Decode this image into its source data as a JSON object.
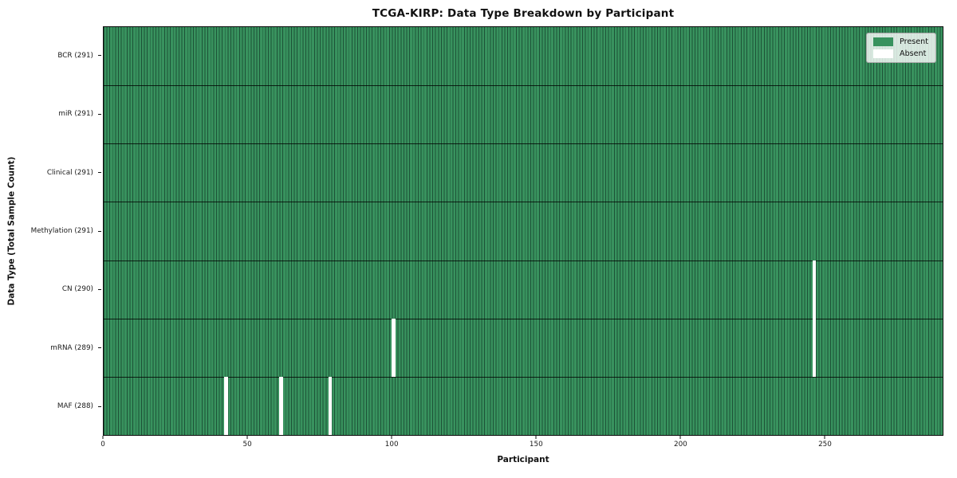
{
  "title": "TCGA-KIRP: Data Type Breakdown by Participant",
  "colors": {
    "present": "#38925e",
    "cell_edge": "#1d5237",
    "absent": "#ffffff",
    "axis_text": "#111111"
  },
  "chart_data": {
    "type": "heatmap",
    "title": "TCGA-KIRP: Data Type Breakdown by Participant",
    "xlabel": "Participant",
    "ylabel": "Data Type (Total Sample Count)",
    "x_ticks": [
      0,
      50,
      100,
      150,
      200,
      250
    ],
    "x_range": [
      0,
      291
    ],
    "n_participants": 291,
    "grid": false,
    "legend_position": "upper right",
    "legend": [
      {
        "label": "Present",
        "color": "#38925e"
      },
      {
        "label": "Absent",
        "color": "#ffffff"
      }
    ],
    "rows": [
      {
        "label": "BCR (291)",
        "data_type": "BCR",
        "total": 291,
        "absent_participants": []
      },
      {
        "label": "miR (291)",
        "data_type": "miR",
        "total": 291,
        "absent_participants": []
      },
      {
        "label": "Clinical (291)",
        "data_type": "Clinical",
        "total": 291,
        "absent_participants": []
      },
      {
        "label": "Methylation (291)",
        "data_type": "Methylation",
        "total": 291,
        "absent_participants": []
      },
      {
        "label": "CN (290)",
        "data_type": "CN",
        "total": 290,
        "absent_participants": [
          246
        ]
      },
      {
        "label": "mRNA (289)",
        "data_type": "mRNA",
        "total": 289,
        "absent_participants": [
          100,
          246
        ]
      },
      {
        "label": "MAF (288)",
        "data_type": "MAF",
        "total": 288,
        "absent_participants": [
          42,
          61,
          78
        ]
      }
    ]
  }
}
